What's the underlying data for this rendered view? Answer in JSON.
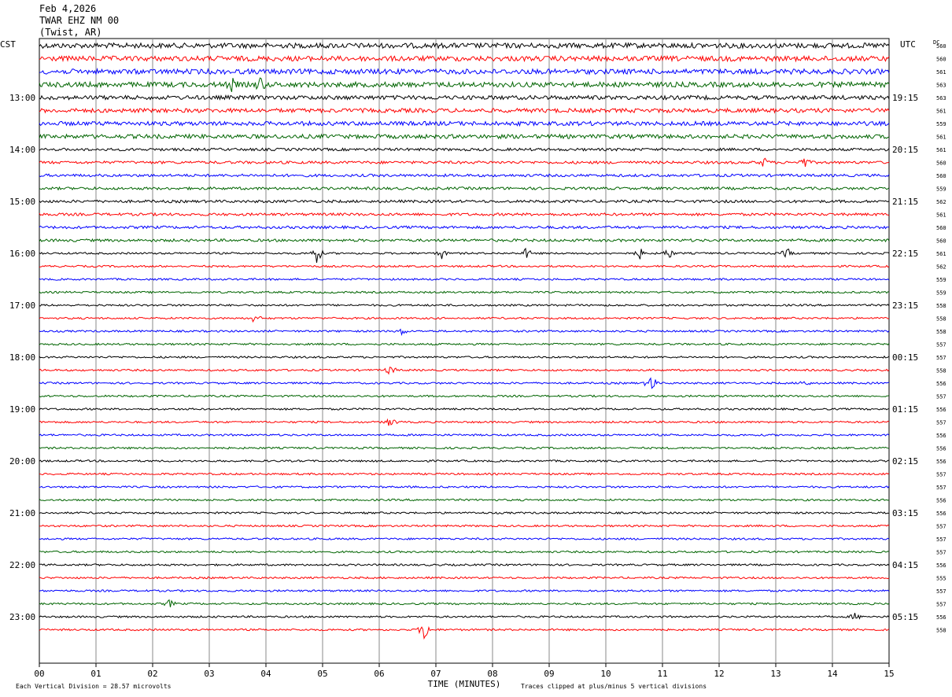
{
  "header": {
    "date": "Feb 4,2026",
    "station": "TWAR EHZ NM 00",
    "location": "(Twist, AR)"
  },
  "chart_data": {
    "type": "line",
    "title": "",
    "left_axis_label": "CST",
    "right_axis_label": "UTC",
    "dc_label": "DC",
    "xlabel": "TIME (MINUTES)",
    "xlim": [
      0,
      15
    ],
    "x_ticks": [
      "00",
      "01",
      "02",
      "03",
      "04",
      "05",
      "06",
      "07",
      "08",
      "09",
      "10",
      "11",
      "12",
      "13",
      "14",
      "15"
    ],
    "left_times": [
      "13:00",
      "14:00",
      "15:00",
      "16:00",
      "17:00",
      "18:00",
      "19:00",
      "20:00",
      "21:00",
      "22:00",
      "23:00"
    ],
    "right_times": [
      "19:15",
      "20:15",
      "21:15",
      "22:15",
      "23:15",
      "00:15",
      "01:15",
      "02:15",
      "03:15",
      "04:15",
      "05:15"
    ],
    "trace_colors": [
      "#000000",
      "#ff0000",
      "#0000ff",
      "#006400"
    ],
    "dc_values": [
      "560",
      "560",
      "561",
      "563",
      "563",
      "561",
      "559",
      "561",
      "561",
      "560",
      "560",
      "559",
      "562",
      "561",
      "560",
      "560",
      "561",
      "562",
      "559",
      "559",
      "558",
      "558",
      "558",
      "557",
      "557",
      "558",
      "556",
      "557",
      "556",
      "557",
      "556",
      "556",
      "556",
      "557",
      "557",
      "556",
      "556",
      "557",
      "557",
      "557",
      "556",
      "555",
      "557",
      "557",
      "556",
      "558"
    ],
    "footer_left": "Each Vertical Division =   28.57 microvolts",
    "footer_right": "Traces clipped at plus/minus 5 vertical divisions",
    "events": [
      {
        "trace": 3,
        "minute": 3.4,
        "amplitude": 7
      },
      {
        "trace": 3,
        "minute": 3.9,
        "amplitude": 9
      },
      {
        "trace": 9,
        "minute": 12.8,
        "amplitude": 6
      },
      {
        "trace": 9,
        "minute": 13.5,
        "amplitude": 7
      },
      {
        "trace": 16,
        "minute": 4.9,
        "amplitude": 14
      },
      {
        "trace": 16,
        "minute": 7.1,
        "amplitude": 7
      },
      {
        "trace": 16,
        "minute": 8.6,
        "amplitude": 7
      },
      {
        "trace": 16,
        "minute": 10.6,
        "amplitude": 7
      },
      {
        "trace": 16,
        "minute": 11.1,
        "amplitude": 9
      },
      {
        "trace": 16,
        "minute": 13.2,
        "amplitude": 7
      },
      {
        "trace": 21,
        "minute": 3.8,
        "amplitude": 6
      },
      {
        "trace": 22,
        "minute": 6.4,
        "amplitude": 5
      },
      {
        "trace": 25,
        "minute": 6.2,
        "amplitude": 7
      },
      {
        "trace": 26,
        "minute": 10.8,
        "amplitude": 14
      },
      {
        "trace": 26,
        "minute": 13.5,
        "amplitude": 5
      },
      {
        "trace": 29,
        "minute": 6.2,
        "amplitude": 7
      },
      {
        "trace": 43,
        "minute": 2.3,
        "amplitude": 5
      },
      {
        "trace": 45,
        "minute": 6.8,
        "amplitude": 16
      },
      {
        "trace": 44,
        "minute": 14.4,
        "amplitude": 5
      }
    ]
  }
}
